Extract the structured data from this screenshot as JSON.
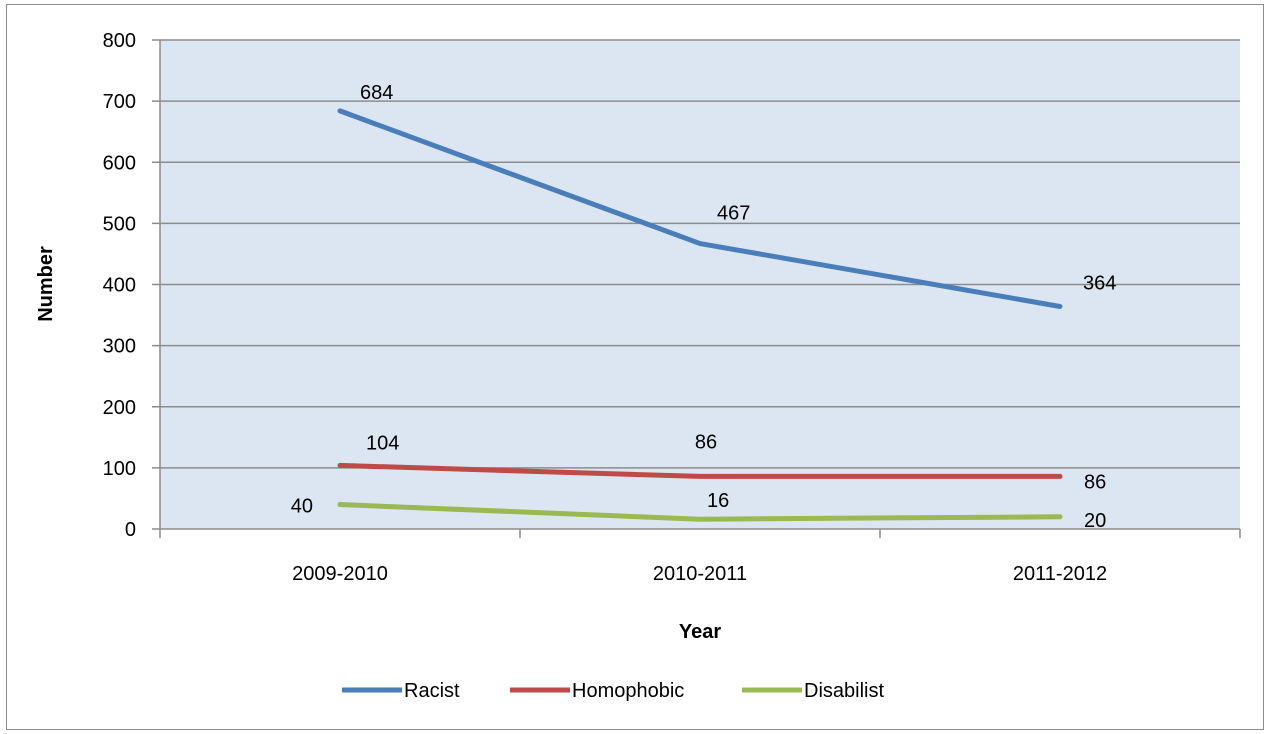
{
  "chart_data": {
    "type": "line",
    "categories": [
      "2009-2010",
      "2010-2011",
      "2011-2012"
    ],
    "series": [
      {
        "name": "Racist",
        "values": [
          684,
          467,
          364
        ],
        "color": "#4a7ebb"
      },
      {
        "name": "Homophobic",
        "values": [
          104,
          86,
          86
        ],
        "color": "#be4b48"
      },
      {
        "name": "Disabilist",
        "values": [
          40,
          16,
          20
        ],
        "color": "#98b954"
      }
    ],
    "xlabel": "Year",
    "ylabel": "Number",
    "ylim": [
      0,
      800
    ],
    "yticks": [
      0,
      100,
      200,
      300,
      400,
      500,
      600,
      700,
      800
    ],
    "grid": true,
    "legend": "bottom",
    "plot_background": "#dce6f2"
  }
}
